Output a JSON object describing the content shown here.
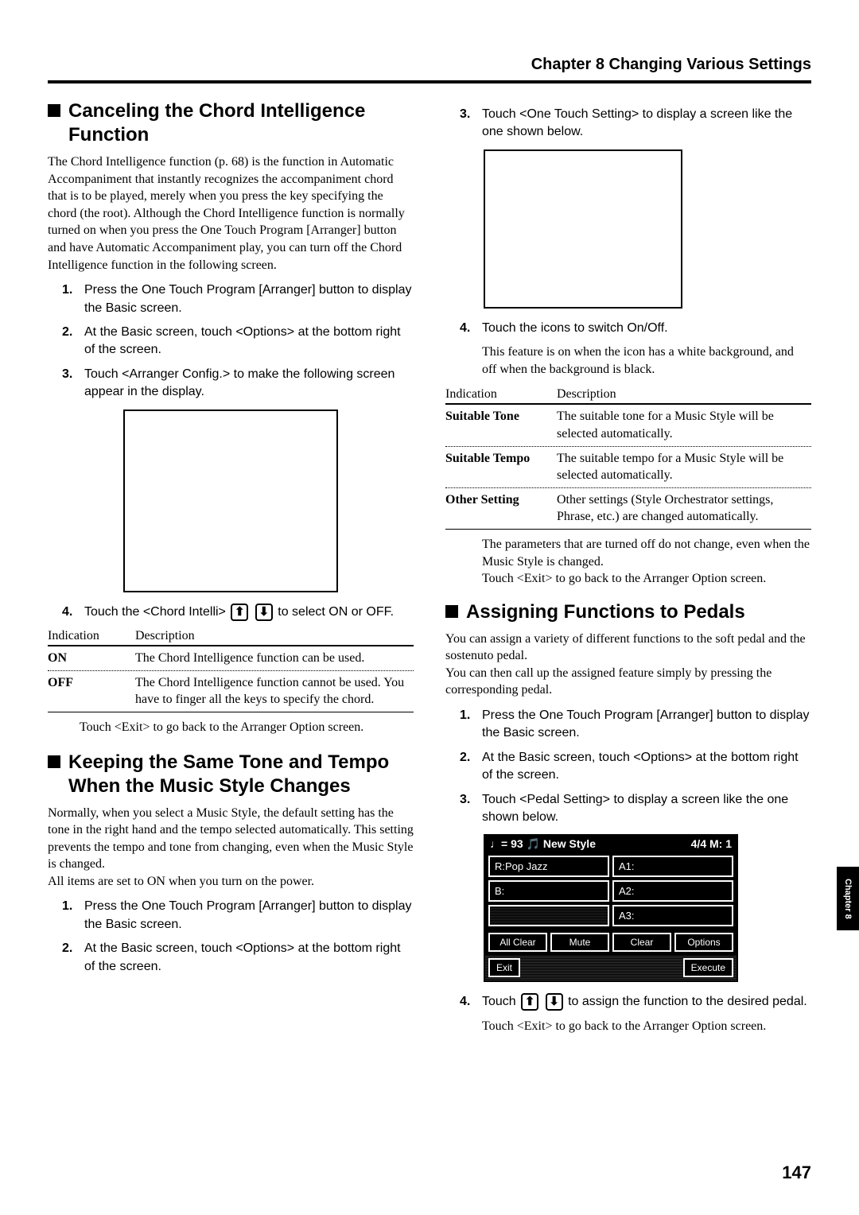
{
  "chapter_header": "Chapter 8  Changing Various Settings",
  "page_number": "147",
  "side_tab": "Chapter 8",
  "left": {
    "sec1": {
      "heading": "Canceling the Chord Intelligence Function",
      "intro": "The Chord Intelligence function (p. 68) is the function in Automatic Accompaniment that instantly recognizes the accompaniment chord that is to be played, merely when you press the key specifying the chord (the root). Although the Chord Intelligence function is normally turned on when you press the One Touch Program [Arranger] button and have Automatic Accompaniment play, you can turn off the Chord Intelligence function in the following screen.",
      "steps": [
        "Press the One Touch Program [Arranger] button to display the Basic screen.",
        "At the Basic screen, touch <Options> at the bottom right of the screen.",
        "Touch <Arranger Config.> to make the following screen appear in the display."
      ],
      "step4_a": "Touch the <Chord Intelli>",
      "step4_b": "to select ON  or  OFF.",
      "table_h1": "Indication",
      "table_h2": "Description",
      "rows": [
        {
          "ind": "ON",
          "desc": "The Chord Intelligence function can be used."
        },
        {
          "ind": "OFF",
          "desc": "The Chord Intelligence function cannot be used. You have to finger all the keys to specify the chord."
        }
      ],
      "after": "Touch <Exit> to go back to the Arranger Option screen."
    },
    "sec2": {
      "heading": "Keeping the Same Tone and Tempo When the Music Style Changes",
      "intro": "Normally, when you select a Music Style, the default setting has the tone in the right hand and the tempo selected automatically. This setting prevents the tempo and tone from changing, even when the Music Style is changed.\nAll items are set to ON when you turn on the power.",
      "steps": [
        "Press the One Touch Program [Arranger] button to display the Basic screen.",
        "At the Basic screen, touch <Options> at the bottom right of the screen."
      ]
    }
  },
  "right": {
    "step3": "Touch <One Touch Setting> to display a screen like the one shown below.",
    "step4": "Touch the icons to switch On/Off.",
    "step4_note": "This feature is on when the icon has a white background, and off when the background is black.",
    "table_h1": "Indication",
    "table_h2": "Description",
    "rows": [
      {
        "ind": "Suitable Tone",
        "desc": "The suitable tone for a Music Style will be selected automatically."
      },
      {
        "ind": "Suitable Tempo",
        "desc": "The suitable tempo for a Music Style will be selected automatically."
      },
      {
        "ind": "Other Setting",
        "desc": "Other settings (Style Orchestrator settings, Phrase, etc.) are changed automatically."
      }
    ],
    "after": "The parameters that are turned off do not change, even when the Music Style is changed.\nTouch <Exit> to go back to the Arranger Option screen.",
    "sec2": {
      "heading": "Assigning Functions to Pedals",
      "intro": "You can assign a variety of different functions to the soft pedal and the sostenuto pedal.\nYou can then call up the assigned feature simply by pressing the corresponding pedal.",
      "steps": [
        "Press the One Touch Program [Arranger] button to display the Basic screen.",
        "At the Basic screen, touch <Options> at the bottom right of the screen.",
        "Touch <Pedal Setting> to display a screen like the one shown below."
      ],
      "step4_a": "Touch",
      "step4_b": "to assign the function to the desired pedal.",
      "after": "Touch <Exit> to go back to the Arranger Option screen."
    },
    "lcd": {
      "top_left": "♩= 93 🎵 New Style",
      "top_right": "4/4   M:    1",
      "r": "R:Pop Jazz",
      "a1": "A1:",
      "b": "B:",
      "a2": "A2:",
      "blank": "",
      "a3": "A3:",
      "btns": [
        "All Clear",
        "Mute",
        "Clear",
        "Options"
      ],
      "exit": "Exit",
      "execute": "Execute"
    }
  }
}
